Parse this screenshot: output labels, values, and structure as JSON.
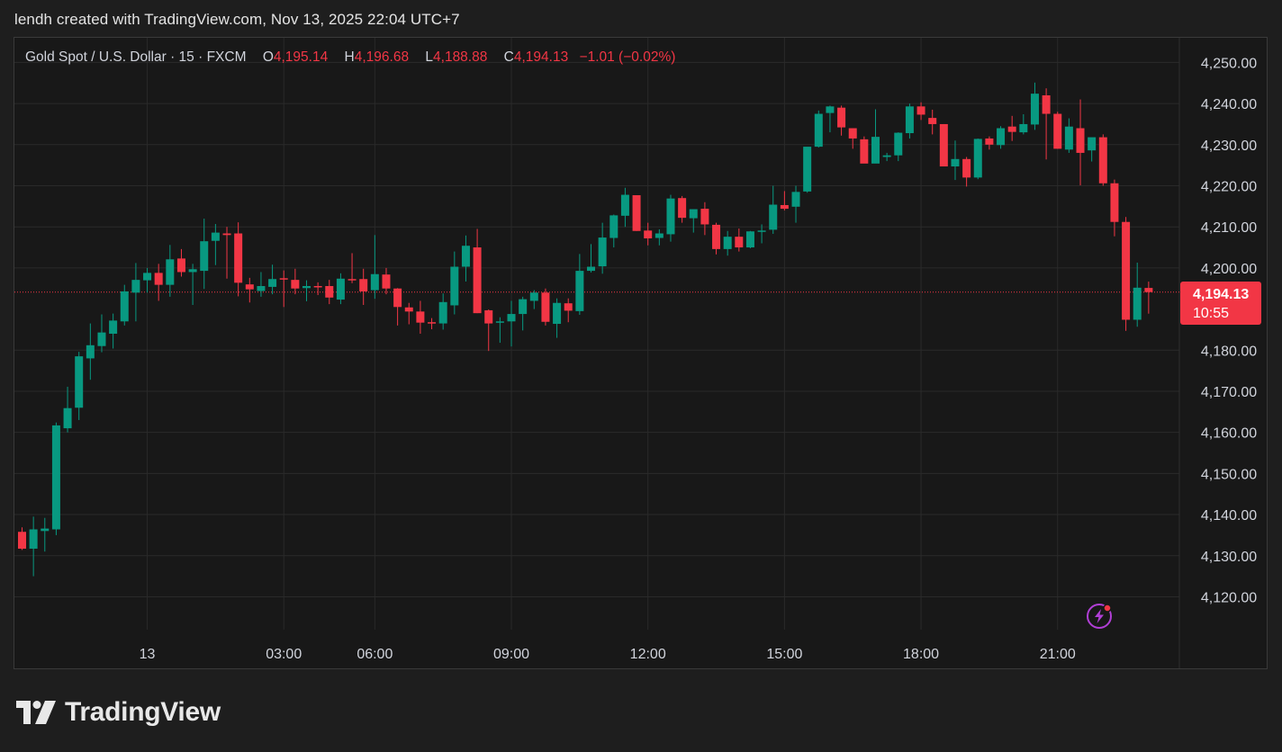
{
  "caption": "lendh created with TradingView.com, Nov 13, 2025 22:04 UTC+7",
  "legend": {
    "symbol": "Gold Spot / U.S. Dollar · 15 · FXCM",
    "open_label": "O",
    "open": "4,195.14",
    "high_label": "H",
    "high": "4,196.68",
    "low_label": "L",
    "low": "4,188.88",
    "close_label": "C",
    "close": "4,194.13",
    "change": "−1.01 (−0.02%)"
  },
  "price_tag": {
    "price": "4,194.13",
    "countdown": "10:55"
  },
  "brand": {
    "name": "TradingView",
    "icon": "tradingview-logo-icon"
  },
  "toolbar": {
    "alert_icon": "lightning-bolt-icon"
  },
  "colors": {
    "up": "#089981",
    "down": "#f23645",
    "grid": "#2a2a2a",
    "background": "#181818",
    "axis_text": "#d1d4dc"
  },
  "chart_data": {
    "type": "candlestick",
    "title": "Gold Spot / U.S. Dollar · 15 · FXCM",
    "xlabel": "",
    "ylabel": "",
    "ylim": [
      4112,
      4256
    ],
    "y_ticks": [
      "4,250.00",
      "4,240.00",
      "4,230.00",
      "4,220.00",
      "4,210.00",
      "4,200.00",
      "4,180.00",
      "4,170.00",
      "4,160.00",
      "4,150.00",
      "4,140.00",
      "4,130.00",
      "4,120.00"
    ],
    "y_tick_values": [
      4250,
      4240,
      4230,
      4220,
      4210,
      4200,
      4180,
      4170,
      4160,
      4150,
      4140,
      4130,
      4120
    ],
    "x_ticks": [
      "13",
      "03:00",
      "06:00",
      "09:00",
      "12:00",
      "15:00",
      "18:00",
      "21:00"
    ],
    "x_tick_bar_index": [
      11,
      23,
      31,
      43,
      55,
      67,
      79,
      91
    ],
    "last_price": 4194.13,
    "grid": true,
    "candles": [
      [
        4135.8,
        4136.9,
        4131.4,
        4131.7
      ],
      [
        4131.7,
        4139.5,
        4125.0,
        4136.4
      ],
      [
        4136.0,
        4139.2,
        4131.0,
        4136.6
      ],
      [
        4136.4,
        4162.4,
        4135.0,
        4161.7
      ],
      [
        4161.0,
        4171.1,
        4160.0,
        4165.9
      ],
      [
        4166.0,
        4179.6,
        4163.0,
        4178.5
      ],
      [
        4178.0,
        4186.5,
        4172.8,
        4181.2
      ],
      [
        4181.0,
        4188.7,
        4179.5,
        4184.3
      ],
      [
        4184.0,
        4188.9,
        4180.4,
        4187.2
      ],
      [
        4187.0,
        4195.9,
        4186.0,
        4194.3
      ],
      [
        4194.0,
        4201.2,
        4187.0,
        4197.1
      ],
      [
        4197.0,
        4200.0,
        4194.0,
        4198.8
      ],
      [
        4198.8,
        4201.0,
        4192.0,
        4195.9
      ],
      [
        4195.9,
        4205.6,
        4193.0,
        4202.1
      ],
      [
        4202.3,
        4204.6,
        4197.9,
        4199.0
      ],
      [
        4199.0,
        4201.0,
        4191.0,
        4199.7
      ],
      [
        4199.3,
        4212.0,
        4194.9,
        4206.5
      ],
      [
        4206.6,
        4210.7,
        4200.7,
        4208.6
      ],
      [
        4208.4,
        4210.0,
        4197.4,
        4208.0
      ],
      [
        4208.4,
        4211.1,
        4193.1,
        4196.4
      ],
      [
        4196.0,
        4197.6,
        4191.6,
        4194.8
      ],
      [
        4194.4,
        4199.0,
        4193.0,
        4195.6
      ],
      [
        4195.4,
        4200.8,
        4193.6,
        4197.3
      ],
      [
        4197.5,
        4199.4,
        4190.5,
        4197.2
      ],
      [
        4197.1,
        4199.8,
        4193.6,
        4195.0
      ],
      [
        4195.1,
        4197.0,
        4191.9,
        4195.6
      ],
      [
        4195.6,
        4196.5,
        4193.4,
        4195.3
      ],
      [
        4195.6,
        4197.1,
        4191.2,
        4192.8
      ],
      [
        4192.3,
        4198.7,
        4191.2,
        4197.4
      ],
      [
        4197.3,
        4203.6,
        4196.3,
        4197.2
      ],
      [
        4197.3,
        4199.8,
        4191.0,
        4194.3
      ],
      [
        4194.6,
        4208.0,
        4192.5,
        4198.5
      ],
      [
        4198.4,
        4200.0,
        4193.6,
        4195.0
      ],
      [
        4195.0,
        4195.1,
        4186.0,
        4190.5
      ],
      [
        4190.4,
        4191.5,
        4186.3,
        4189.4
      ],
      [
        4189.4,
        4192.0,
        4184.0,
        4186.7
      ],
      [
        4186.8,
        4187.8,
        4185.1,
        4186.5
      ],
      [
        4186.5,
        4193.8,
        4185.0,
        4191.7
      ],
      [
        4190.9,
        4204.0,
        4188.7,
        4200.3
      ],
      [
        4200.3,
        4207.9,
        4196.7,
        4205.4
      ],
      [
        4205.0,
        4209.5,
        4189.0,
        4189.0
      ],
      [
        4189.7,
        4189.9,
        4179.8,
        4186.5
      ],
      [
        4186.7,
        4188.0,
        4181.8,
        4187.0
      ],
      [
        4187.0,
        4192.0,
        4180.9,
        4188.8
      ],
      [
        4188.8,
        4193.0,
        4184.8,
        4192.4
      ],
      [
        4192.0,
        4194.6,
        4190.0,
        4194.0
      ],
      [
        4194.0,
        4195.0,
        4186.0,
        4186.9
      ],
      [
        4186.4,
        4192.6,
        4183.0,
        4191.5
      ],
      [
        4191.4,
        4192.6,
        4186.8,
        4189.6
      ],
      [
        4189.5,
        4203.4,
        4188.6,
        4199.3
      ],
      [
        4199.3,
        4205.8,
        4198.9,
        4200.3
      ],
      [
        4200.4,
        4211.0,
        4198.6,
        4207.4
      ],
      [
        4207.3,
        4213.0,
        4205.0,
        4212.8
      ],
      [
        4212.7,
        4219.5,
        4210.0,
        4217.8
      ],
      [
        4217.7,
        4217.7,
        4209.0,
        4209.0
      ],
      [
        4209.1,
        4211.0,
        4205.5,
        4207.2
      ],
      [
        4207.3,
        4209.4,
        4205.5,
        4208.4
      ],
      [
        4208.2,
        4217.8,
        4206.4,
        4216.9
      ],
      [
        4217.0,
        4217.5,
        4211.0,
        4212.2
      ],
      [
        4212.1,
        4214.0,
        4208.6,
        4214.3
      ],
      [
        4214.4,
        4216.0,
        4208.0,
        4210.6
      ],
      [
        4210.5,
        4211.0,
        4203.3,
        4204.6
      ],
      [
        4204.6,
        4209.0,
        4203.0,
        4207.6
      ],
      [
        4207.6,
        4209.6,
        4204.0,
        4205.0
      ],
      [
        4205.0,
        4209.0,
        4204.8,
        4208.9
      ],
      [
        4208.8,
        4210.6,
        4206.0,
        4209.1
      ],
      [
        4209.3,
        4220.0,
        4208.3,
        4215.4
      ],
      [
        4215.3,
        4218.7,
        4214.0,
        4214.4
      ],
      [
        4214.9,
        4220.0,
        4211.0,
        4218.5
      ],
      [
        4218.6,
        4229.0,
        4218.3,
        4229.5
      ],
      [
        4229.5,
        4238.3,
        4229.3,
        4237.5
      ],
      [
        4237.7,
        4239.5,
        4233.0,
        4239.3
      ],
      [
        4239.0,
        4239.5,
        4232.2,
        4234.2
      ],
      [
        4234.0,
        4234.0,
        4229.0,
        4231.5
      ],
      [
        4231.3,
        4232.0,
        4226.2,
        4225.4
      ],
      [
        4225.4,
        4238.6,
        4226.0,
        4231.9
      ],
      [
        4227.0,
        4228.0,
        4226.0,
        4227.4
      ],
      [
        4227.4,
        4233.0,
        4226.0,
        4232.9
      ],
      [
        4232.8,
        4240.0,
        4231.5,
        4239.3
      ],
      [
        4239.3,
        4240.3,
        4236.0,
        4237.3
      ],
      [
        4236.5,
        4238.5,
        4232.5,
        4235.0
      ],
      [
        4235.0,
        4235.0,
        4225.0,
        4224.7
      ],
      [
        4224.7,
        4231.0,
        4221.4,
        4226.5
      ],
      [
        4226.5,
        4227.0,
        4219.8,
        4222.0
      ],
      [
        4222.0,
        4231.5,
        4221.6,
        4231.4
      ],
      [
        4231.5,
        4232.0,
        4228.8,
        4230.0
      ],
      [
        4229.9,
        4234.5,
        4229.0,
        4234.0
      ],
      [
        4234.4,
        4237.0,
        4230.9,
        4233.1
      ],
      [
        4233.0,
        4237.4,
        4232.5,
        4235.0
      ],
      [
        4234.9,
        4245.1,
        4233.6,
        4242.4
      ],
      [
        4242.0,
        4243.7,
        4226.4,
        4237.5
      ],
      [
        4237.5,
        4238.0,
        4229.0,
        4229.0
      ],
      [
        4228.8,
        4236.4,
        4228.0,
        4234.4
      ],
      [
        4234.0,
        4241.0,
        4220.1,
        4228.0
      ],
      [
        4228.6,
        4231.6,
        4225.9,
        4231.8
      ],
      [
        4231.8,
        4232.5,
        4220.0,
        4220.6
      ],
      [
        4220.6,
        4221.5,
        4207.7,
        4211.2
      ],
      [
        4211.2,
        4212.4,
        4184.7,
        4187.4
      ],
      [
        4187.4,
        4201.3,
        4185.7,
        4195.2
      ],
      [
        4195.14,
        4196.68,
        4188.88,
        4194.13
      ]
    ]
  }
}
